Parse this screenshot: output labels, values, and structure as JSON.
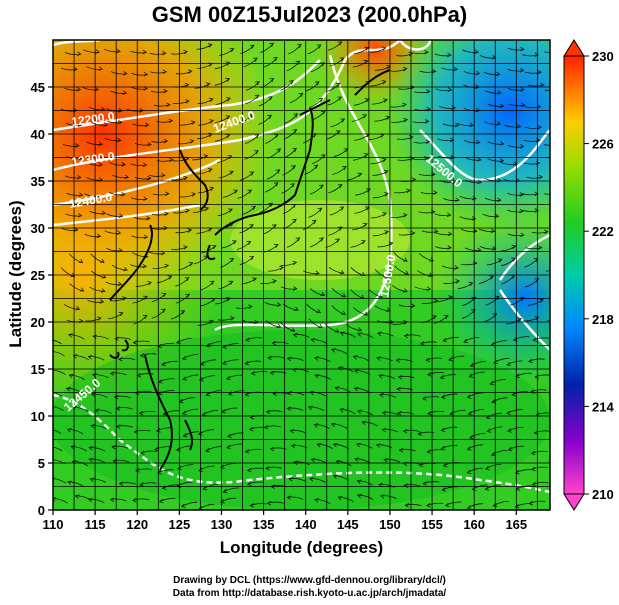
{
  "title": "GSM 00Z15Jul2023 (200.0hPa)",
  "x_axis": {
    "label": "Longitude (degrees)",
    "ticks": [
      "110",
      "115",
      "120",
      "125",
      "130",
      "135",
      "140",
      "145",
      "150",
      "155",
      "160",
      "165"
    ]
  },
  "y_axis": {
    "label": "Latitude (degrees)",
    "ticks": [
      "0",
      "5",
      "10",
      "15",
      "20",
      "25",
      "30",
      "35",
      "40",
      "45"
    ]
  },
  "colorbar": {
    "ticks": [
      "210",
      "214",
      "218",
      "222",
      "226",
      "230"
    ],
    "colors": [
      "#ff00cc",
      "#0000aa",
      "#00aaff",
      "#00dd66",
      "#33cc00",
      "#ffaa00",
      "#ff3300"
    ]
  },
  "contour_labels": [
    "12200.0",
    "12300.0",
    "12400.0",
    "12400.0",
    "12500.0",
    "12500.0",
    "12450.0"
  ],
  "credits": [
    "Drawing by DCL (https://www.gfd-dennou.org/library/dcl/)",
    "Data from http://database.rish.kyoto-u.ac.jp/arch/jmadata/"
  ]
}
